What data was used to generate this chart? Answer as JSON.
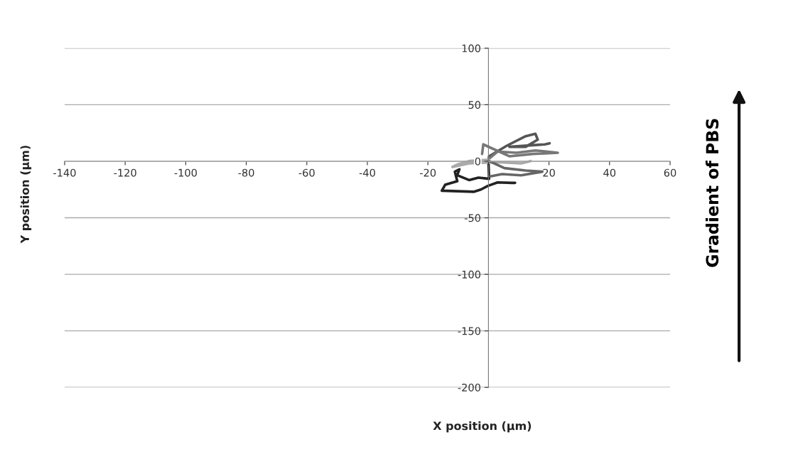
{
  "chart_data": {
    "type": "line",
    "xlabel": "X position (µm)",
    "ylabel": "Y position (µm)",
    "annotations": [
      "Gradient of PBS"
    ],
    "xlim": [
      -140,
      60
    ],
    "xticks": [
      -140,
      -120,
      -100,
      -80,
      -60,
      -40,
      -20,
      {
        "value": 0,
        "label": null
      },
      20,
      40,
      60
    ],
    "ylim": [
      -200,
      100
    ],
    "yticks": [
      -200,
      -150,
      -100,
      -50,
      0,
      50,
      100
    ],
    "grid": "y",
    "legend": false,
    "marker": "none",
    "line_style": "solid",
    "series": [
      {
        "color": "#222222",
        "x": [
          0,
          0.2,
          -3.3,
          -6.4,
          -10.3,
          -9.6,
          -11.1,
          -10.3,
          -14.3,
          -15.4,
          -4.9,
          -2.5,
          -0.2,
          3.0,
          7.7,
          8.8
        ],
        "values": [
          0,
          -15.5,
          -14.5,
          -16.6,
          -12.4,
          -7.1,
          -9.2,
          -17.6,
          -20.8,
          -26,
          -27,
          -25,
          -21.8,
          -18.7,
          -19.1,
          -19.1
        ]
      },
      {
        "color": "#555555",
        "x": [
          0,
          0.2,
          6.1,
          12.3,
          15.5,
          16.3,
          12.3,
          6.9,
          18.6,
          20.2
        ],
        "values": [
          0,
          4.4,
          13.8,
          22.2,
          24.3,
          19.1,
          12.8,
          12.8,
          14.9,
          15.9
        ]
      },
      {
        "color": "#777777",
        "x": [
          0,
          0.2,
          3.0,
          9.2,
          15.5,
          22.9,
          14.7,
          6.9,
          -1.7,
          -2.1
        ],
        "values": [
          0,
          2.3,
          8.6,
          7.5,
          9.6,
          7.5,
          6.5,
          4.4,
          14.9,
          6.5
        ]
      },
      {
        "color": "#aaaaaa",
        "x": [
          0,
          0.2,
          -6.4,
          -10.3,
          -11.9,
          -6.4,
          3.0,
          10.8,
          13.9
        ],
        "values": [
          0,
          1.3,
          0.2,
          -2.9,
          -5,
          -1.9,
          -0.8,
          -1.9,
          0.2
        ]
      },
      {
        "color": "#666666",
        "x": [
          0,
          0.2,
          5.3,
          12.3,
          17.8,
          10.8,
          4.5,
          0.6
        ],
        "values": [
          0,
          0.2,
          -6.1,
          -8.2,
          -9.2,
          -12.4,
          -11.3,
          -13.4
        ]
      }
    ]
  }
}
